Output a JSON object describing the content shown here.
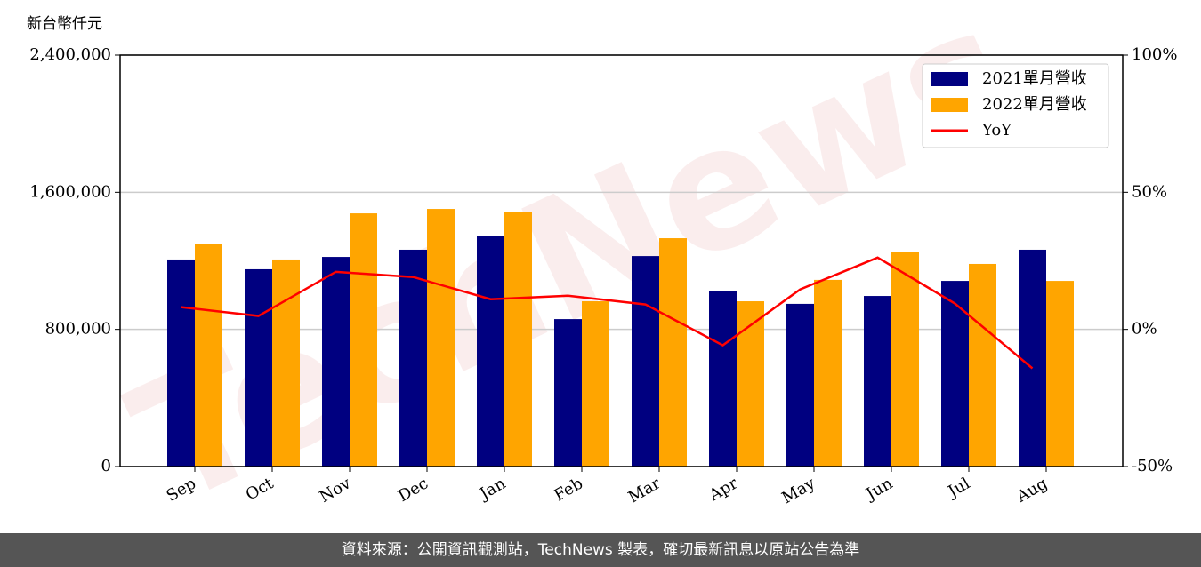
{
  "chart_data": {
    "type": "bar_line",
    "y_label": "新台幣仟元",
    "watermark": "TechNews",
    "footer": "資料來源：公開資訊觀測站，TechNews 製表，確切最新訊息以原站公告為準",
    "categories": [
      "Sep",
      "Oct",
      "Nov",
      "Dec",
      "Jan",
      "Feb",
      "Mar",
      "Apr",
      "May",
      "Jun",
      "Jul",
      "Aug"
    ],
    "series": [
      {
        "name": "2021單月營收",
        "color": "#000080",
        "type": "bar",
        "values": [
          1208000,
          1151000,
          1223000,
          1265000,
          1343000,
          860000,
          1228000,
          1026000,
          949000,
          995000,
          1083000,
          1265000
        ]
      },
      {
        "name": "2022單月營收",
        "color": "#ffa500",
        "type": "bar",
        "values": [
          1301000,
          1208000,
          1477000,
          1503000,
          1483000,
          964000,
          1332000,
          964000,
          1089000,
          1254000,
          1182000,
          1083000
        ]
      },
      {
        "name": "YoY",
        "color": "#ff0000",
        "type": "line",
        "axis": "y2",
        "values": [
          8.1,
          4.9,
          21.0,
          19.1,
          11.0,
          12.3,
          9.1,
          -5.8,
          14.6,
          26.2,
          9.4,
          -14.2
        ]
      }
    ],
    "ylim": [
      0,
      2400000
    ],
    "yticks": [
      0,
      {
        "value": 800000,
        "label": "800,000"
      },
      {
        "value": 1600000,
        "label": "1,600,000"
      },
      {
        "value": 2400000,
        "label": "2,400,000"
      }
    ],
    "y2lim": [
      -50,
      100
    ],
    "y2ticks": [
      {
        "value": -50,
        "label": "-50%"
      },
      {
        "value": 0,
        "label": "0%"
      },
      {
        "value": 50,
        "label": "50%"
      },
      {
        "value": 100,
        "label": "100%"
      }
    ],
    "grid": true,
    "legend": "upper right"
  }
}
